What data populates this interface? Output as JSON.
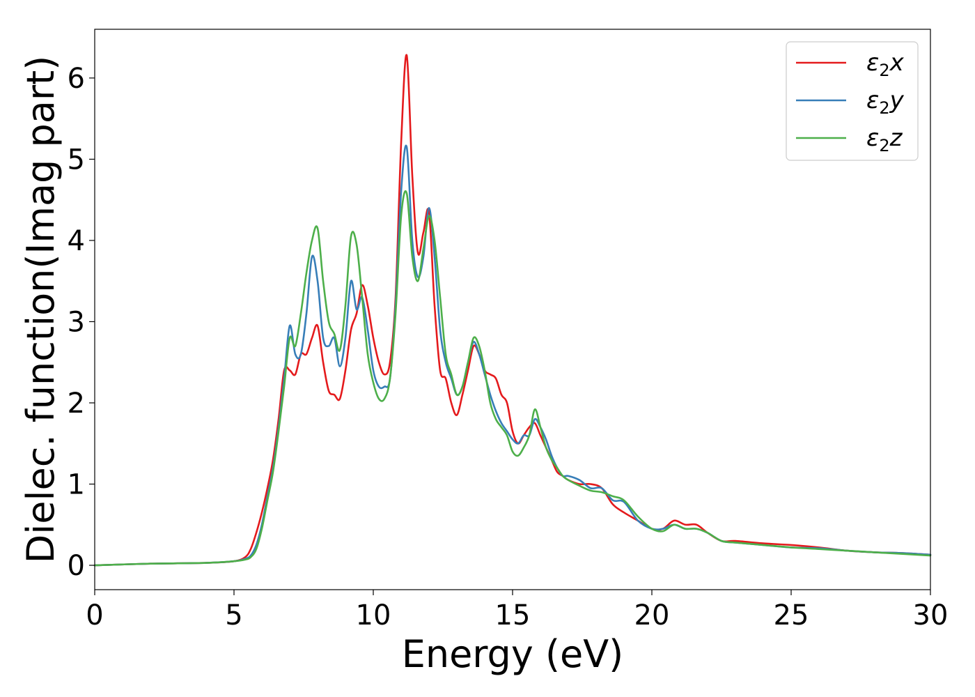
{
  "chart_data": {
    "type": "line",
    "title": "",
    "xlabel": "Energy (eV)",
    "ylabel": "Dielec. function(Imag part)",
    "xlim": [
      0,
      30
    ],
    "ylim": [
      -0.3,
      6.6
    ],
    "xticks": [
      0,
      5,
      10,
      15,
      20,
      25,
      30
    ],
    "yticks": [
      0,
      1,
      2,
      3,
      4,
      5,
      6
    ],
    "grid": false,
    "legend_position": "top-right",
    "series": [
      {
        "name": "ε₂x",
        "legend_base": "ε",
        "legend_sub": "2",
        "legend_tail": "x",
        "color": "#e41a1c",
        "x": [
          0,
          2,
          4,
          5,
          5.4,
          5.6,
          5.8,
          6.0,
          6.2,
          6.4,
          6.6,
          6.8,
          7.0,
          7.2,
          7.4,
          7.6,
          7.8,
          8.0,
          8.2,
          8.4,
          8.6,
          8.8,
          9.0,
          9.2,
          9.4,
          9.6,
          9.8,
          10.0,
          10.2,
          10.4,
          10.6,
          10.8,
          11.0,
          11.2,
          11.4,
          11.6,
          11.8,
          12.0,
          12.2,
          12.4,
          12.6,
          12.8,
          13.0,
          13.2,
          13.4,
          13.6,
          13.8,
          14.0,
          14.2,
          14.4,
          14.6,
          14.8,
          15.0,
          15.2,
          15.4,
          15.6,
          15.8,
          16.0,
          16.2,
          16.4,
          16.6,
          16.8,
          17.0,
          17.4,
          17.8,
          18.2,
          18.6,
          19.0,
          19.5,
          20.0,
          20.4,
          20.8,
          21.2,
          21.6,
          22.0,
          22.5,
          23,
          24,
          25,
          26,
          27,
          28,
          29,
          30
        ],
        "y": [
          0.0,
          0.02,
          0.03,
          0.05,
          0.1,
          0.2,
          0.4,
          0.65,
          0.95,
          1.3,
          1.8,
          2.4,
          2.4,
          2.35,
          2.6,
          2.6,
          2.8,
          2.95,
          2.5,
          2.15,
          2.1,
          2.05,
          2.4,
          2.9,
          3.1,
          3.45,
          3.2,
          2.8,
          2.5,
          2.35,
          2.5,
          3.3,
          5.2,
          6.28,
          4.8,
          3.85,
          4.1,
          4.35,
          3.2,
          2.4,
          2.3,
          2.0,
          1.85,
          2.1,
          2.4,
          2.7,
          2.6,
          2.4,
          2.35,
          2.3,
          2.1,
          2.0,
          1.65,
          1.5,
          1.6,
          1.7,
          1.75,
          1.6,
          1.45,
          1.3,
          1.15,
          1.1,
          1.05,
          1.0,
          1.0,
          0.95,
          0.75,
          0.65,
          0.55,
          0.45,
          0.45,
          0.55,
          0.5,
          0.5,
          0.4,
          0.3,
          0.3,
          0.27,
          0.25,
          0.22,
          0.18,
          0.16,
          0.15,
          0.13
        ]
      },
      {
        "name": "ε₂y",
        "legend_base": "ε",
        "legend_sub": "2",
        "legend_tail": "y",
        "color": "#377eb8",
        "x": [
          0,
          2,
          4,
          5,
          5.4,
          5.6,
          5.8,
          6.0,
          6.2,
          6.4,
          6.6,
          6.8,
          7.0,
          7.2,
          7.4,
          7.6,
          7.8,
          8.0,
          8.2,
          8.4,
          8.6,
          8.8,
          9.0,
          9.2,
          9.4,
          9.6,
          9.8,
          10.0,
          10.2,
          10.4,
          10.6,
          10.8,
          11.0,
          11.2,
          11.4,
          11.6,
          11.8,
          12.0,
          12.2,
          12.4,
          12.6,
          12.8,
          13.0,
          13.2,
          13.4,
          13.6,
          13.8,
          14.0,
          14.2,
          14.4,
          14.6,
          14.8,
          15.0,
          15.2,
          15.4,
          15.6,
          15.8,
          16.0,
          16.2,
          16.4,
          16.6,
          16.8,
          17.0,
          17.4,
          17.8,
          18.2,
          18.6,
          19.0,
          19.5,
          20.0,
          20.4,
          20.8,
          21.2,
          21.6,
          22.0,
          22.5,
          23,
          24,
          25,
          26,
          27,
          28,
          29,
          30
        ],
        "y": [
          0.0,
          0.02,
          0.03,
          0.05,
          0.08,
          0.12,
          0.25,
          0.5,
          0.85,
          1.2,
          1.7,
          2.3,
          2.95,
          2.6,
          2.6,
          3.1,
          3.8,
          3.5,
          2.8,
          2.7,
          2.8,
          2.45,
          2.8,
          3.5,
          3.15,
          3.3,
          2.9,
          2.4,
          2.2,
          2.2,
          2.3,
          3.2,
          4.6,
          5.15,
          4.0,
          3.55,
          3.8,
          4.4,
          3.8,
          2.9,
          2.5,
          2.3,
          2.1,
          2.2,
          2.5,
          2.75,
          2.6,
          2.35,
          2.1,
          1.9,
          1.75,
          1.65,
          1.55,
          1.5,
          1.6,
          1.6,
          1.8,
          1.7,
          1.55,
          1.35,
          1.2,
          1.1,
          1.1,
          1.05,
          0.95,
          0.95,
          0.8,
          0.78,
          0.55,
          0.45,
          0.45,
          0.5,
          0.45,
          0.45,
          0.4,
          0.3,
          0.28,
          0.25,
          0.22,
          0.21,
          0.18,
          0.16,
          0.15,
          0.13
        ]
      },
      {
        "name": "ε₂z",
        "legend_base": "ε",
        "legend_sub": "2",
        "legend_tail": "z",
        "color": "#4daf4a",
        "x": [
          0,
          2,
          4,
          5,
          5.4,
          5.6,
          5.8,
          6.0,
          6.2,
          6.4,
          6.6,
          6.8,
          7.0,
          7.2,
          7.4,
          7.6,
          7.8,
          8.0,
          8.2,
          8.4,
          8.6,
          8.8,
          9.0,
          9.2,
          9.4,
          9.6,
          9.8,
          10.0,
          10.2,
          10.4,
          10.6,
          10.8,
          11.0,
          11.2,
          11.4,
          11.6,
          11.8,
          12.0,
          12.2,
          12.4,
          12.6,
          12.8,
          13.0,
          13.2,
          13.4,
          13.6,
          13.8,
          14.0,
          14.2,
          14.4,
          14.6,
          14.8,
          15.0,
          15.2,
          15.4,
          15.6,
          15.8,
          16.0,
          16.2,
          16.4,
          16.6,
          16.8,
          17.0,
          17.4,
          17.8,
          18.2,
          18.6,
          19.0,
          19.5,
          20.0,
          20.4,
          20.8,
          21.2,
          21.6,
          22.0,
          22.5,
          23,
          24,
          25,
          26,
          27,
          28,
          29,
          30
        ],
        "y": [
          0.0,
          0.02,
          0.03,
          0.05,
          0.07,
          0.1,
          0.2,
          0.45,
          0.8,
          1.15,
          1.65,
          2.2,
          2.8,
          2.7,
          3.1,
          3.6,
          4.0,
          4.15,
          3.5,
          3.0,
          2.85,
          2.65,
          3.2,
          4.05,
          3.95,
          3.3,
          2.6,
          2.25,
          2.05,
          2.05,
          2.3,
          3.1,
          4.3,
          4.58,
          3.8,
          3.5,
          3.9,
          4.3,
          4.0,
          3.3,
          2.6,
          2.35,
          2.1,
          2.2,
          2.5,
          2.8,
          2.7,
          2.4,
          2.0,
          1.8,
          1.7,
          1.6,
          1.4,
          1.35,
          1.45,
          1.6,
          1.92,
          1.7,
          1.45,
          1.3,
          1.2,
          1.1,
          1.05,
          0.98,
          0.92,
          0.9,
          0.85,
          0.8,
          0.6,
          0.45,
          0.42,
          0.5,
          0.45,
          0.45,
          0.4,
          0.3,
          0.28,
          0.25,
          0.22,
          0.2,
          0.18,
          0.16,
          0.14,
          0.12
        ]
      }
    ]
  }
}
